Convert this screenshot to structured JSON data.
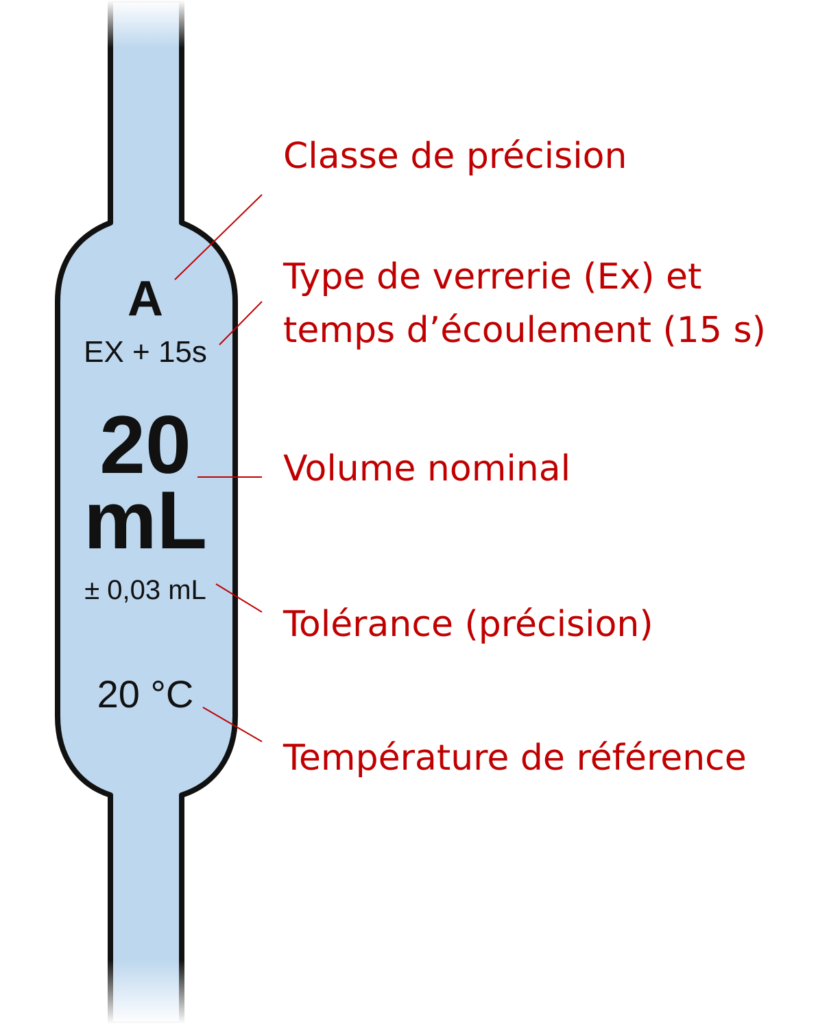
{
  "colors": {
    "glass_fill": "#bdd7ee",
    "outline": "#111111",
    "callout": "#c00000",
    "leader": "#c00000"
  },
  "pipette": {
    "class_mark": "A",
    "type_mark": "EX + 15s",
    "volume_value": "20",
    "volume_unit": "mL",
    "tolerance": "± 0,03 mL",
    "temperature": "20 °C"
  },
  "callouts": [
    {
      "lines": [
        "Classe de précision"
      ]
    },
    {
      "lines": [
        "Type de verrerie (Ex) et",
        "temps d’écoulement (15 s)"
      ]
    },
    {
      "lines": [
        "Volume nominal"
      ]
    },
    {
      "lines": [
        "Tolérance (précision)"
      ]
    },
    {
      "lines": [
        "Température de référence"
      ]
    }
  ]
}
